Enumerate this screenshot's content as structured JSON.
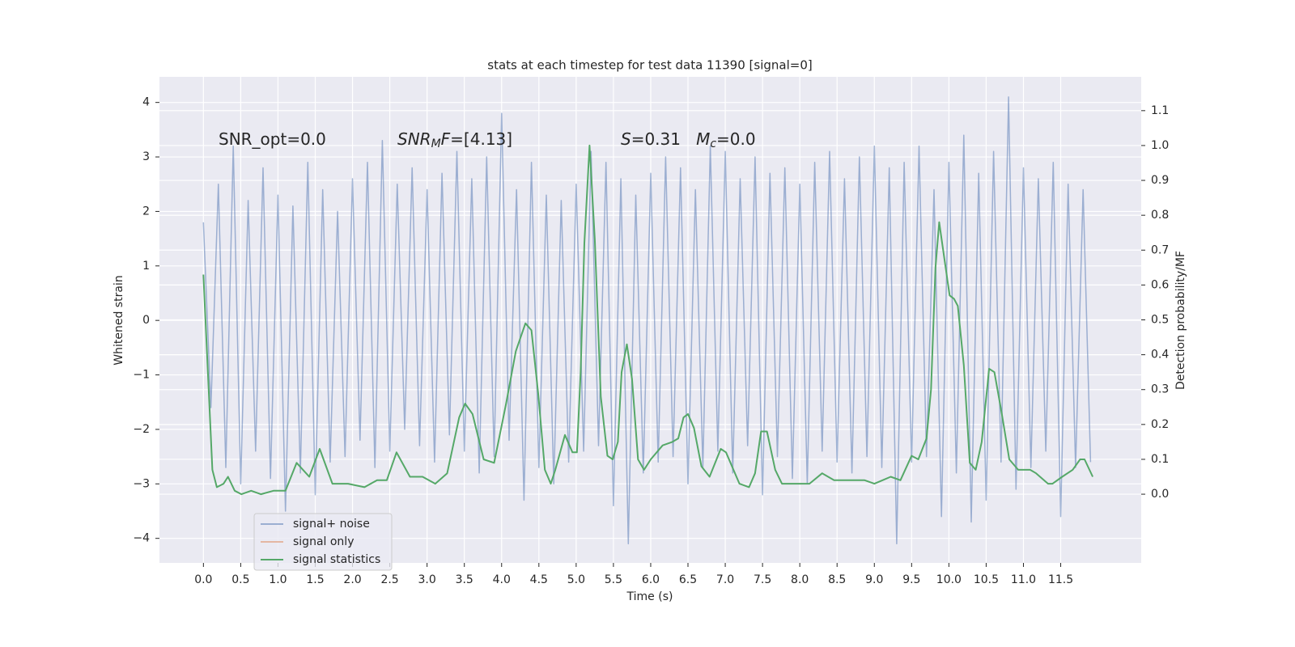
{
  "chart_data": {
    "type": "line",
    "title": "stats at each timestep for test data 11390 [signal=0]",
    "xlabel": "Time (s)",
    "ylabel": "Whitened strain",
    "y2label": "Detection probability/MF",
    "annotations": [
      {
        "parts": [
          {
            "text": "SNR_opt=0.0"
          }
        ]
      },
      {
        "parts": [
          {
            "text": "SNR",
            "style": "italic"
          },
          {
            "text": "M",
            "style": "italic-sub"
          },
          {
            "text": "F",
            "style": "italic"
          },
          {
            "text": "=[4.13]"
          }
        ]
      },
      {
        "parts": [
          {
            "text": "S",
            "style": "italic"
          },
          {
            "text": "=0.31   "
          },
          {
            "text": "M",
            "style": "italic"
          },
          {
            "text": "c",
            "style": "italic-sub"
          },
          {
            "text": "=0.0"
          }
        ]
      }
    ],
    "xlim": [
      -0.59,
      12.58
    ],
    "ylim": [
      -4.45,
      4.47
    ],
    "y2lim": [
      -0.197,
      1.197
    ],
    "xticks": [
      {
        "value": 0,
        "label": "0.0"
      },
      0.5,
      {
        "value": 1,
        "label": "1.0"
      },
      1.5,
      {
        "value": 2,
        "label": "2.0"
      },
      2.5,
      {
        "value": 3,
        "label": "3.0"
      },
      3.5,
      {
        "value": 4,
        "label": "4.0"
      },
      4.5,
      {
        "value": 5,
        "label": "5.0"
      },
      5.5,
      {
        "value": 6,
        "label": "6.0"
      },
      6.5,
      {
        "value": 7,
        "label": "7.0"
      },
      7.5,
      {
        "value": 8,
        "label": "8.0"
      },
      8.5,
      {
        "value": 9,
        "label": "9.0"
      },
      9.5,
      {
        "value": 10,
        "label": "10.0"
      },
      10.5,
      {
        "value": 11,
        "label": "11.0"
      },
      11.5
    ],
    "yticks": [
      {
        "value": -4,
        "label": "−4"
      },
      {
        "value": -3,
        "label": "−3"
      },
      {
        "value": -2,
        "label": "−2"
      },
      {
        "value": -1,
        "label": "−1"
      },
      0,
      1,
      2,
      3,
      4
    ],
    "y2ticks": [
      {
        "value": 0,
        "label": "0.0"
      },
      0.1,
      0.2,
      0.3,
      0.4,
      0.5,
      0.6,
      0.7,
      0.8,
      0.9,
      {
        "value": 1,
        "label": "1.0"
      },
      1.1
    ],
    "grid": true,
    "legend": "lower left",
    "series": [
      {
        "name": "signal+ noise",
        "color": "#4c72b0",
        "opacity": 0.5,
        "x": [
          0,
          0.1,
          0.2,
          0.3,
          0.4,
          0.5,
          0.6,
          0.7,
          0.8,
          0.9,
          1,
          1.1,
          1.2,
          1.3,
          1.4,
          1.5,
          1.6,
          1.7,
          1.8,
          1.9,
          2,
          2.1,
          2.2,
          2.3,
          2.4,
          2.5,
          2.6,
          2.7,
          2.8,
          2.9,
          3,
          3.1,
          3.2,
          3.3,
          3.4,
          3.5,
          3.6,
          3.7,
          3.8,
          3.9,
          4,
          4.1,
          4.2,
          4.3,
          4.4,
          4.5,
          4.6,
          4.7,
          4.8,
          4.9,
          5,
          5.1,
          5.2,
          5.3,
          5.4,
          5.5,
          5.6,
          5.7,
          5.8,
          5.9,
          6,
          6.1,
          6.2,
          6.3,
          6.4,
          6.5,
          6.6,
          6.7,
          6.8,
          6.9,
          7,
          7.1,
          7.2,
          7.3,
          7.4,
          7.5,
          7.6,
          7.7,
          7.8,
          7.9,
          8,
          8.1,
          8.2,
          8.3,
          8.4,
          8.5,
          8.6,
          8.7,
          8.8,
          8.9,
          9,
          9.1,
          9.2,
          9.3,
          9.4,
          9.5,
          9.6,
          9.7,
          9.8,
          9.9,
          10,
          10.1,
          10.2,
          10.3,
          10.4,
          10.5,
          10.6,
          10.7,
          10.8,
          10.9,
          11,
          11.1,
          11.2,
          11.3,
          11.4,
          11.5,
          11.6,
          11.7,
          11.8,
          11.9
        ],
        "values": [
          1.8,
          -1.6,
          2.5,
          -2.7,
          3.2,
          -3.0,
          2.2,
          -2.4,
          2.8,
          -2.9,
          2.3,
          -3.5,
          2.1,
          -2.8,
          2.9,
          -3.2,
          2.4,
          -2.6,
          2.0,
          -2.5,
          2.6,
          -2.2,
          2.9,
          -2.7,
          3.3,
          -2.4,
          2.5,
          -2.0,
          2.8,
          -2.3,
          2.4,
          -2.6,
          2.7,
          -2.1,
          3.1,
          -2.4,
          2.6,
          -2.8,
          3.0,
          -2.5,
          3.8,
          -2.2,
          2.4,
          -3.3,
          2.9,
          -2.7,
          2.3,
          -3.0,
          2.2,
          -2.6,
          2.5,
          -2.4,
          3.1,
          -2.3,
          2.9,
          -3.4,
          2.6,
          -4.1,
          2.3,
          -2.8,
          2.7,
          -2.6,
          3.0,
          -2.5,
          2.8,
          -3.0,
          2.4,
          -2.7,
          3.2,
          -2.4,
          3.1,
          -2.8,
          2.6,
          -2.3,
          3.0,
          -3.2,
          2.7,
          -2.5,
          2.8,
          -2.9,
          2.5,
          -3.0,
          2.9,
          -2.4,
          3.1,
          -2.6,
          2.6,
          -2.8,
          3.0,
          -2.5,
          3.2,
          -2.7,
          2.8,
          -4.1,
          2.9,
          -2.6,
          3.2,
          -2.5,
          2.4,
          -3.6,
          2.9,
          -2.8,
          3.4,
          -3.7,
          2.7,
          -3.3,
          3.1,
          -2.6,
          4.1,
          -3.1,
          2.8,
          -2.7,
          2.6,
          -2.4,
          2.9,
          -3.6,
          2.5,
          -2.7,
          2.4,
          -2.6
        ]
      },
      {
        "name": "signal only",
        "color": "#dd8452",
        "opacity": 0.5,
        "x": [],
        "values": []
      },
      {
        "name": "signal statistics",
        "color": "#55a868",
        "opacity": 1,
        "axis": "y2",
        "x": [
          0,
          0.12,
          0.18,
          0.27,
          0.33,
          0.42,
          0.51,
          0.64,
          0.77,
          0.94,
          1.1,
          1.25,
          1.42,
          1.56,
          1.73,
          1.94,
          2.16,
          2.33,
          2.46,
          2.59,
          2.77,
          2.94,
          3.11,
          3.27,
          3.43,
          3.51,
          3.61,
          3.76,
          3.9,
          4.06,
          4.19,
          4.32,
          4.4,
          4.49,
          4.58,
          4.66,
          4.72,
          4.85,
          4.95,
          5.01,
          5.06,
          5.11,
          5.18,
          5.25,
          5.33,
          5.42,
          5.49,
          5.56,
          5.61,
          5.68,
          5.75,
          5.83,
          5.91,
          6.0,
          6.16,
          6.29,
          6.37,
          6.44,
          6.5,
          6.58,
          6.68,
          6.79,
          6.94,
          7.01,
          7.19,
          7.32,
          7.4,
          7.48,
          7.56,
          7.67,
          7.76,
          7.92,
          8.13,
          8.3,
          8.46,
          8.68,
          8.87,
          9.0,
          9.11,
          9.22,
          9.35,
          9.5,
          9.59,
          9.7,
          9.76,
          9.82,
          9.87,
          9.93,
          10.01,
          10.07,
          10.12,
          10.2,
          10.28,
          10.36,
          10.44,
          10.54,
          10.61,
          10.71,
          10.81,
          10.93,
          11.09,
          11.17,
          11.33,
          11.39,
          11.52,
          11.66,
          11.76,
          11.82,
          11.93
        ],
        "values": [
          0.63,
          0.07,
          0.02,
          0.03,
          0.05,
          0.01,
          0,
          0.01,
          0,
          0.01,
          0.01,
          0.09,
          0.05,
          0.13,
          0.03,
          0.03,
          0.02,
          0.04,
          0.04,
          0.12,
          0.05,
          0.05,
          0.03,
          0.06,
          0.22,
          0.26,
          0.23,
          0.1,
          0.09,
          0.26,
          0.41,
          0.49,
          0.47,
          0.29,
          0.07,
          0.03,
          0.07,
          0.17,
          0.12,
          0.12,
          0.35,
          0.72,
          1.0,
          0.73,
          0.28,
          0.11,
          0.1,
          0.15,
          0.35,
          0.43,
          0.33,
          0.1,
          0.07,
          0.1,
          0.14,
          0.15,
          0.16,
          0.22,
          0.23,
          0.19,
          0.08,
          0.05,
          0.13,
          0.12,
          0.03,
          0.02,
          0.06,
          0.18,
          0.18,
          0.07,
          0.03,
          0.03,
          0.03,
          0.06,
          0.04,
          0.04,
          0.04,
          0.03,
          0.04,
          0.05,
          0.04,
          0.11,
          0.1,
          0.16,
          0.3,
          0.65,
          0.78,
          0.69,
          0.57,
          0.56,
          0.54,
          0.37,
          0.09,
          0.07,
          0.15,
          0.36,
          0.35,
          0.23,
          0.1,
          0.07,
          0.07,
          0.06,
          0.03,
          0.03,
          0.05,
          0.07,
          0.1,
          0.1,
          0.05
        ]
      }
    ]
  }
}
